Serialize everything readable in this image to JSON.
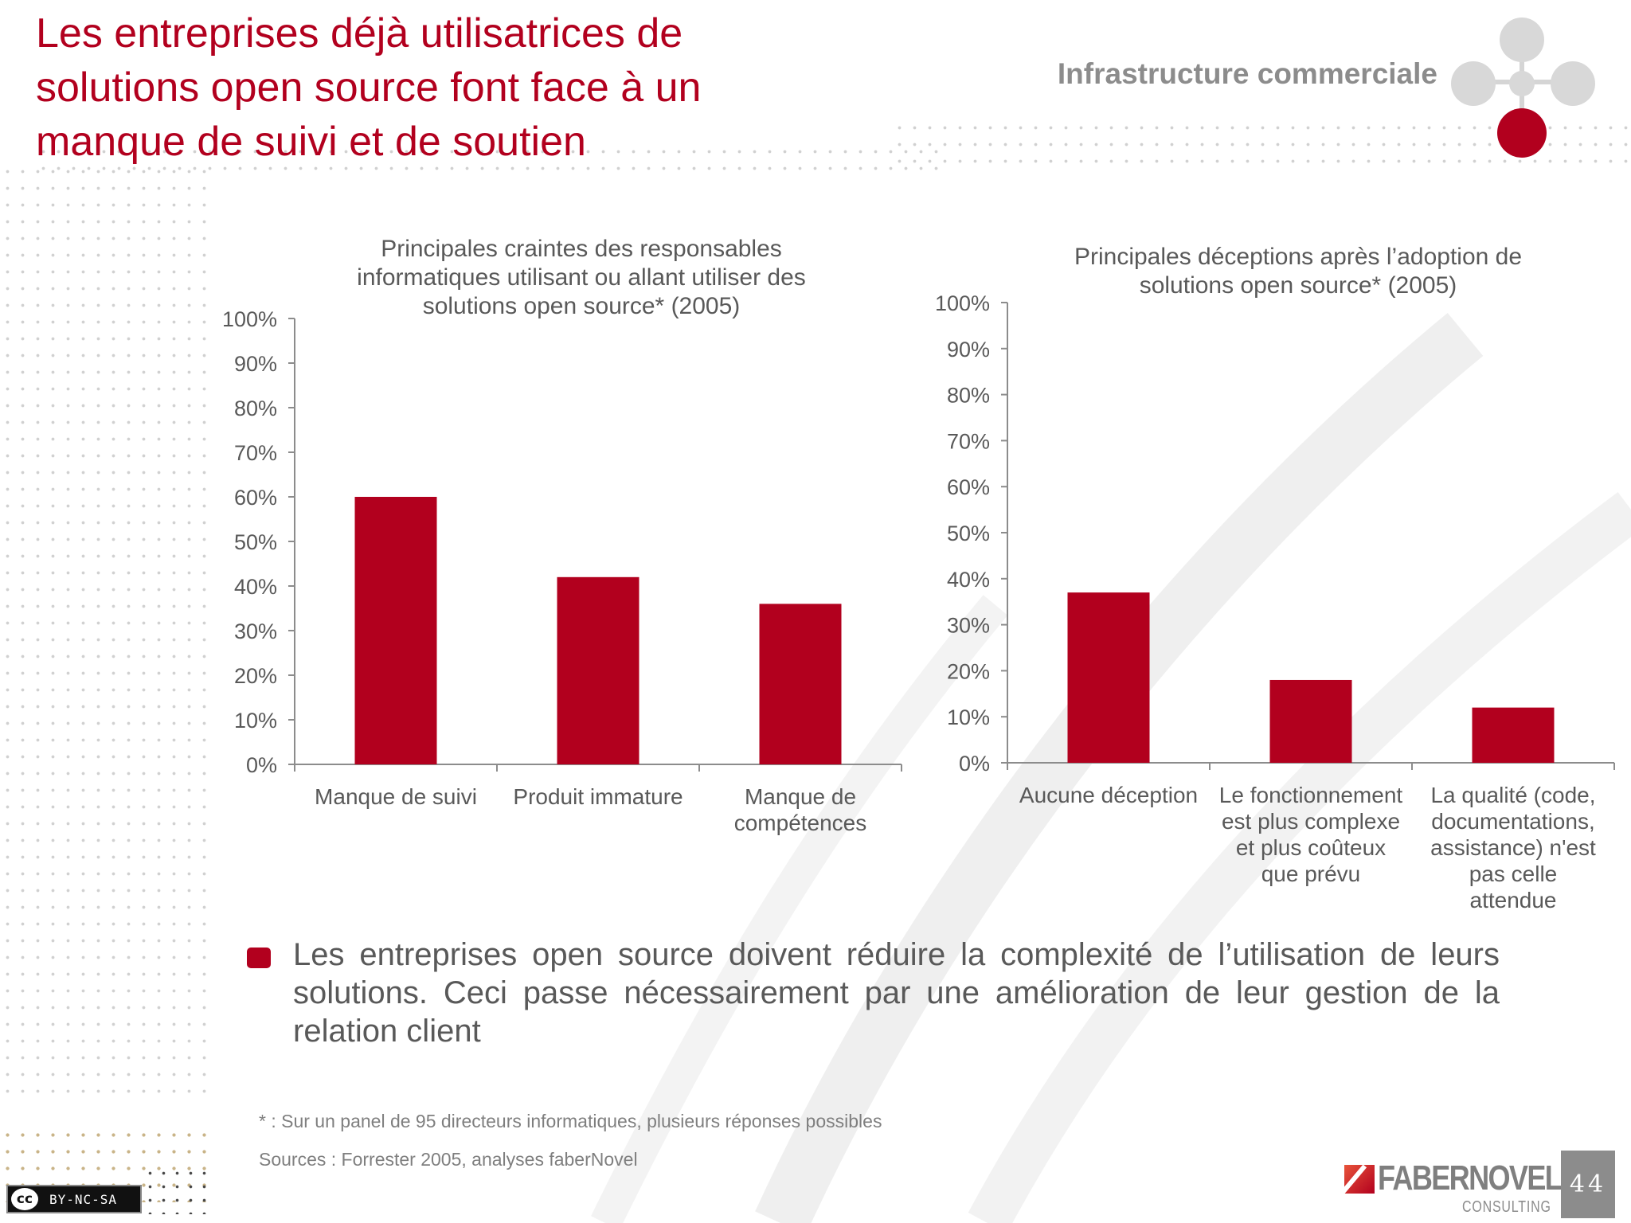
{
  "slide": {
    "title": "Les entreprises déjà utilisatrices de solutions open source font face à un manque de suivi et de soutien",
    "section_label": "Infrastructure commerciale",
    "bullet": "Les entreprises open source doivent réduire la complexité de l’utilisation de leurs solutions. Ceci passe nécessairement par une amélioration de leur gestion de la relation client",
    "footnote": "* : Sur un panel de 95 directeurs informatiques, plusieurs réponses possibles",
    "sources": "Sources : Forrester 2005, analyses faberNovel",
    "license": "BY-NC-SA",
    "license_logo": "cc",
    "brand_name": "FABERNOVEL",
    "brand_sub": "CONSULTING",
    "page_number": "44",
    "colors": {
      "accent": "#b2001e",
      "text": "#595959",
      "gray": "#8c8c8c"
    }
  },
  "chart_data": [
    {
      "type": "bar",
      "title": "Principales craintes des responsables informatiques utilisant ou allant utiliser des solutions open source* (2005)",
      "categories": [
        "Manque de suivi",
        "Produit immature",
        "Manque de compétences"
      ],
      "values": [
        60,
        42,
        36
      ],
      "ylim": [
        0,
        100
      ],
      "yticks": [
        "0%",
        "10%",
        "20%",
        "30%",
        "40%",
        "50%",
        "60%",
        "70%",
        "80%",
        "90%",
        "100%"
      ],
      "xlabel": "",
      "ylabel": "",
      "grid": false,
      "legend": "none",
      "color": "#b2001e"
    },
    {
      "type": "bar",
      "title": "Principales déceptions après l’adoption de solutions open source* (2005)",
      "categories": [
        "Aucune déception",
        "Le fonctionnement est plus complexe et plus coûteux que prévu",
        "La qualité (code, documentations, assistance) n'est pas celle attendue"
      ],
      "values": [
        37,
        18,
        12
      ],
      "ylim": [
        0,
        100
      ],
      "yticks": [
        "0%",
        "10%",
        "20%",
        "30%",
        "40%",
        "50%",
        "60%",
        "70%",
        "80%",
        "90%",
        "100%"
      ],
      "xlabel": "",
      "ylabel": "",
      "grid": false,
      "legend": "none",
      "color": "#b2001e"
    }
  ]
}
